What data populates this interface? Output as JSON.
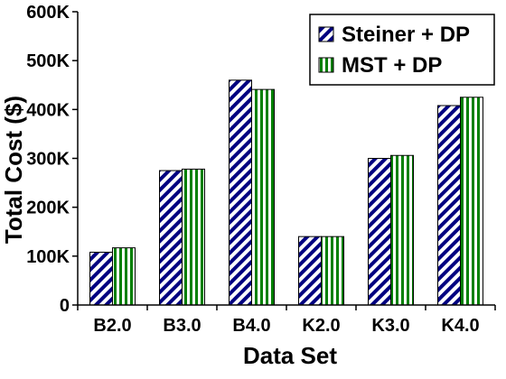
{
  "chart_data": {
    "type": "bar",
    "title": "",
    "xlabel": "Data Set",
    "ylabel": "Total Cost ($)",
    "categories": [
      "B2.0",
      "B3.0",
      "B4.0",
      "K2.0",
      "K3.0",
      "K4.0"
    ],
    "series": [
      {
        "name": "Steiner + DP",
        "values": [
          108000,
          275000,
          460000,
          140000,
          300000,
          408000
        ],
        "pattern": "diagonal-hatch",
        "color": "#000080"
      },
      {
        "name": "MST + DP",
        "values": [
          117000,
          278000,
          441000,
          140000,
          306000,
          425000
        ],
        "pattern": "vertical-stripes",
        "color": "#008000"
      }
    ],
    "ylim": [
      0,
      600000
    ],
    "yticks": [
      0,
      100000,
      200000,
      300000,
      400000,
      500000,
      600000
    ],
    "ytick_labels": [
      "0",
      "100K",
      "200K",
      "300K",
      "400K",
      "500K",
      "600K"
    ],
    "grid": false,
    "legend": "top-right"
  }
}
